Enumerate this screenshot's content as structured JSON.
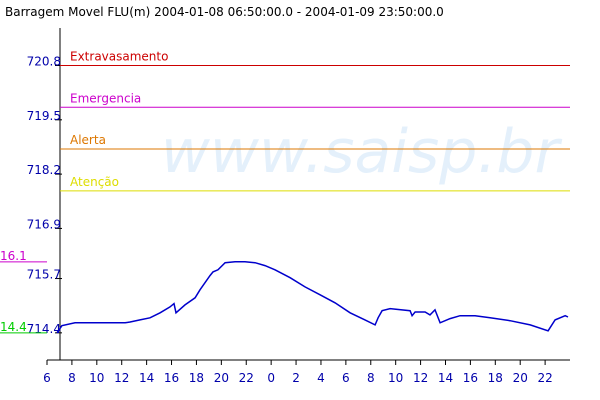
{
  "chart_data": {
    "type": "line",
    "title": "Barragem Movel FLU(m) 2004-01-08 06:50:00.0 - 2004-01-09 23:50:00.0",
    "watermark": "www.saisp.br",
    "x": [
      6.8,
      7.2,
      8.25,
      10.26,
      12.27,
      12.67,
      13.47,
      14.27,
      15.08,
      15.88,
      16.2,
      16.36,
      17.08,
      17.89,
      18.29,
      19.09,
      19.33,
      19.73,
      20.3,
      21.1,
      21.9,
      22.71,
      23.51,
      24.31,
      25.52,
      26.72,
      27.93,
      29.13,
      30.34,
      31.54,
      32.35,
      32.59,
      32.91,
      33.55,
      35.16,
      35.32,
      35.56,
      36.36,
      36.76,
      37.16,
      37.57,
      38.37,
      39.17,
      40.38,
      41.58,
      43.19,
      44.8,
      46.24,
      46.8,
      47.61,
      47.84
    ],
    "values": [
      714.4,
      714.57,
      714.64,
      714.64,
      714.64,
      714.66,
      714.71,
      714.76,
      714.88,
      715.02,
      715.1,
      714.88,
      715.07,
      715.24,
      715.43,
      715.77,
      715.86,
      715.91,
      716.08,
      716.1,
      716.1,
      716.08,
      716.01,
      715.91,
      715.72,
      715.5,
      715.31,
      715.12,
      714.88,
      714.71,
      714.59,
      714.76,
      714.93,
      714.98,
      714.93,
      714.81,
      714.9,
      714.9,
      714.83,
      714.95,
      714.64,
      714.74,
      714.81,
      714.81,
      714.76,
      714.69,
      714.59,
      714.45,
      714.71,
      714.81,
      714.78
    ],
    "color": "#0000cc",
    "xlim": [
      6,
      48.4
    ],
    "xticks": [
      6,
      8,
      10,
      12,
      14,
      16,
      18,
      20,
      22,
      {
        "value": 24,
        "label": "0"
      },
      {
        "value": 26,
        "label": "2"
      },
      {
        "value": 28,
        "label": "4"
      },
      {
        "value": 30,
        "label": "6"
      },
      {
        "value": 32,
        "label": "8"
      },
      {
        "value": 34,
        "label": "10"
      },
      {
        "value": 36,
        "label": "12"
      },
      {
        "value": 38,
        "label": "14"
      },
      {
        "value": 40,
        "label": "16"
      },
      {
        "value": 42,
        "label": "18"
      },
      {
        "value": 44,
        "label": "20"
      },
      {
        "value": 46,
        "label": "22"
      }
    ],
    "ylim": [
      713.75,
      721.65
    ],
    "yticks": [
      720.8,
      719.5,
      718.2,
      716.9,
      715.7,
      714.4
    ],
    "thresholds": [
      {
        "label": "Extravasamento",
        "value": 720.8,
        "color": "#cc0000"
      },
      {
        "label": "Emergencia",
        "value": 719.8,
        "color": "#cc00cc"
      },
      {
        "label": "Alerta",
        "value": 718.8,
        "color": "#dd7700"
      },
      {
        "label": "Atenção",
        "value": 717.8,
        "color": "#dddd00"
      }
    ],
    "extremes": [
      {
        "label": "16.1",
        "value": 716.1,
        "color": "#cc00cc"
      },
      {
        "label": "14.4",
        "value": 714.4,
        "color": "#00cc00"
      }
    ]
  }
}
